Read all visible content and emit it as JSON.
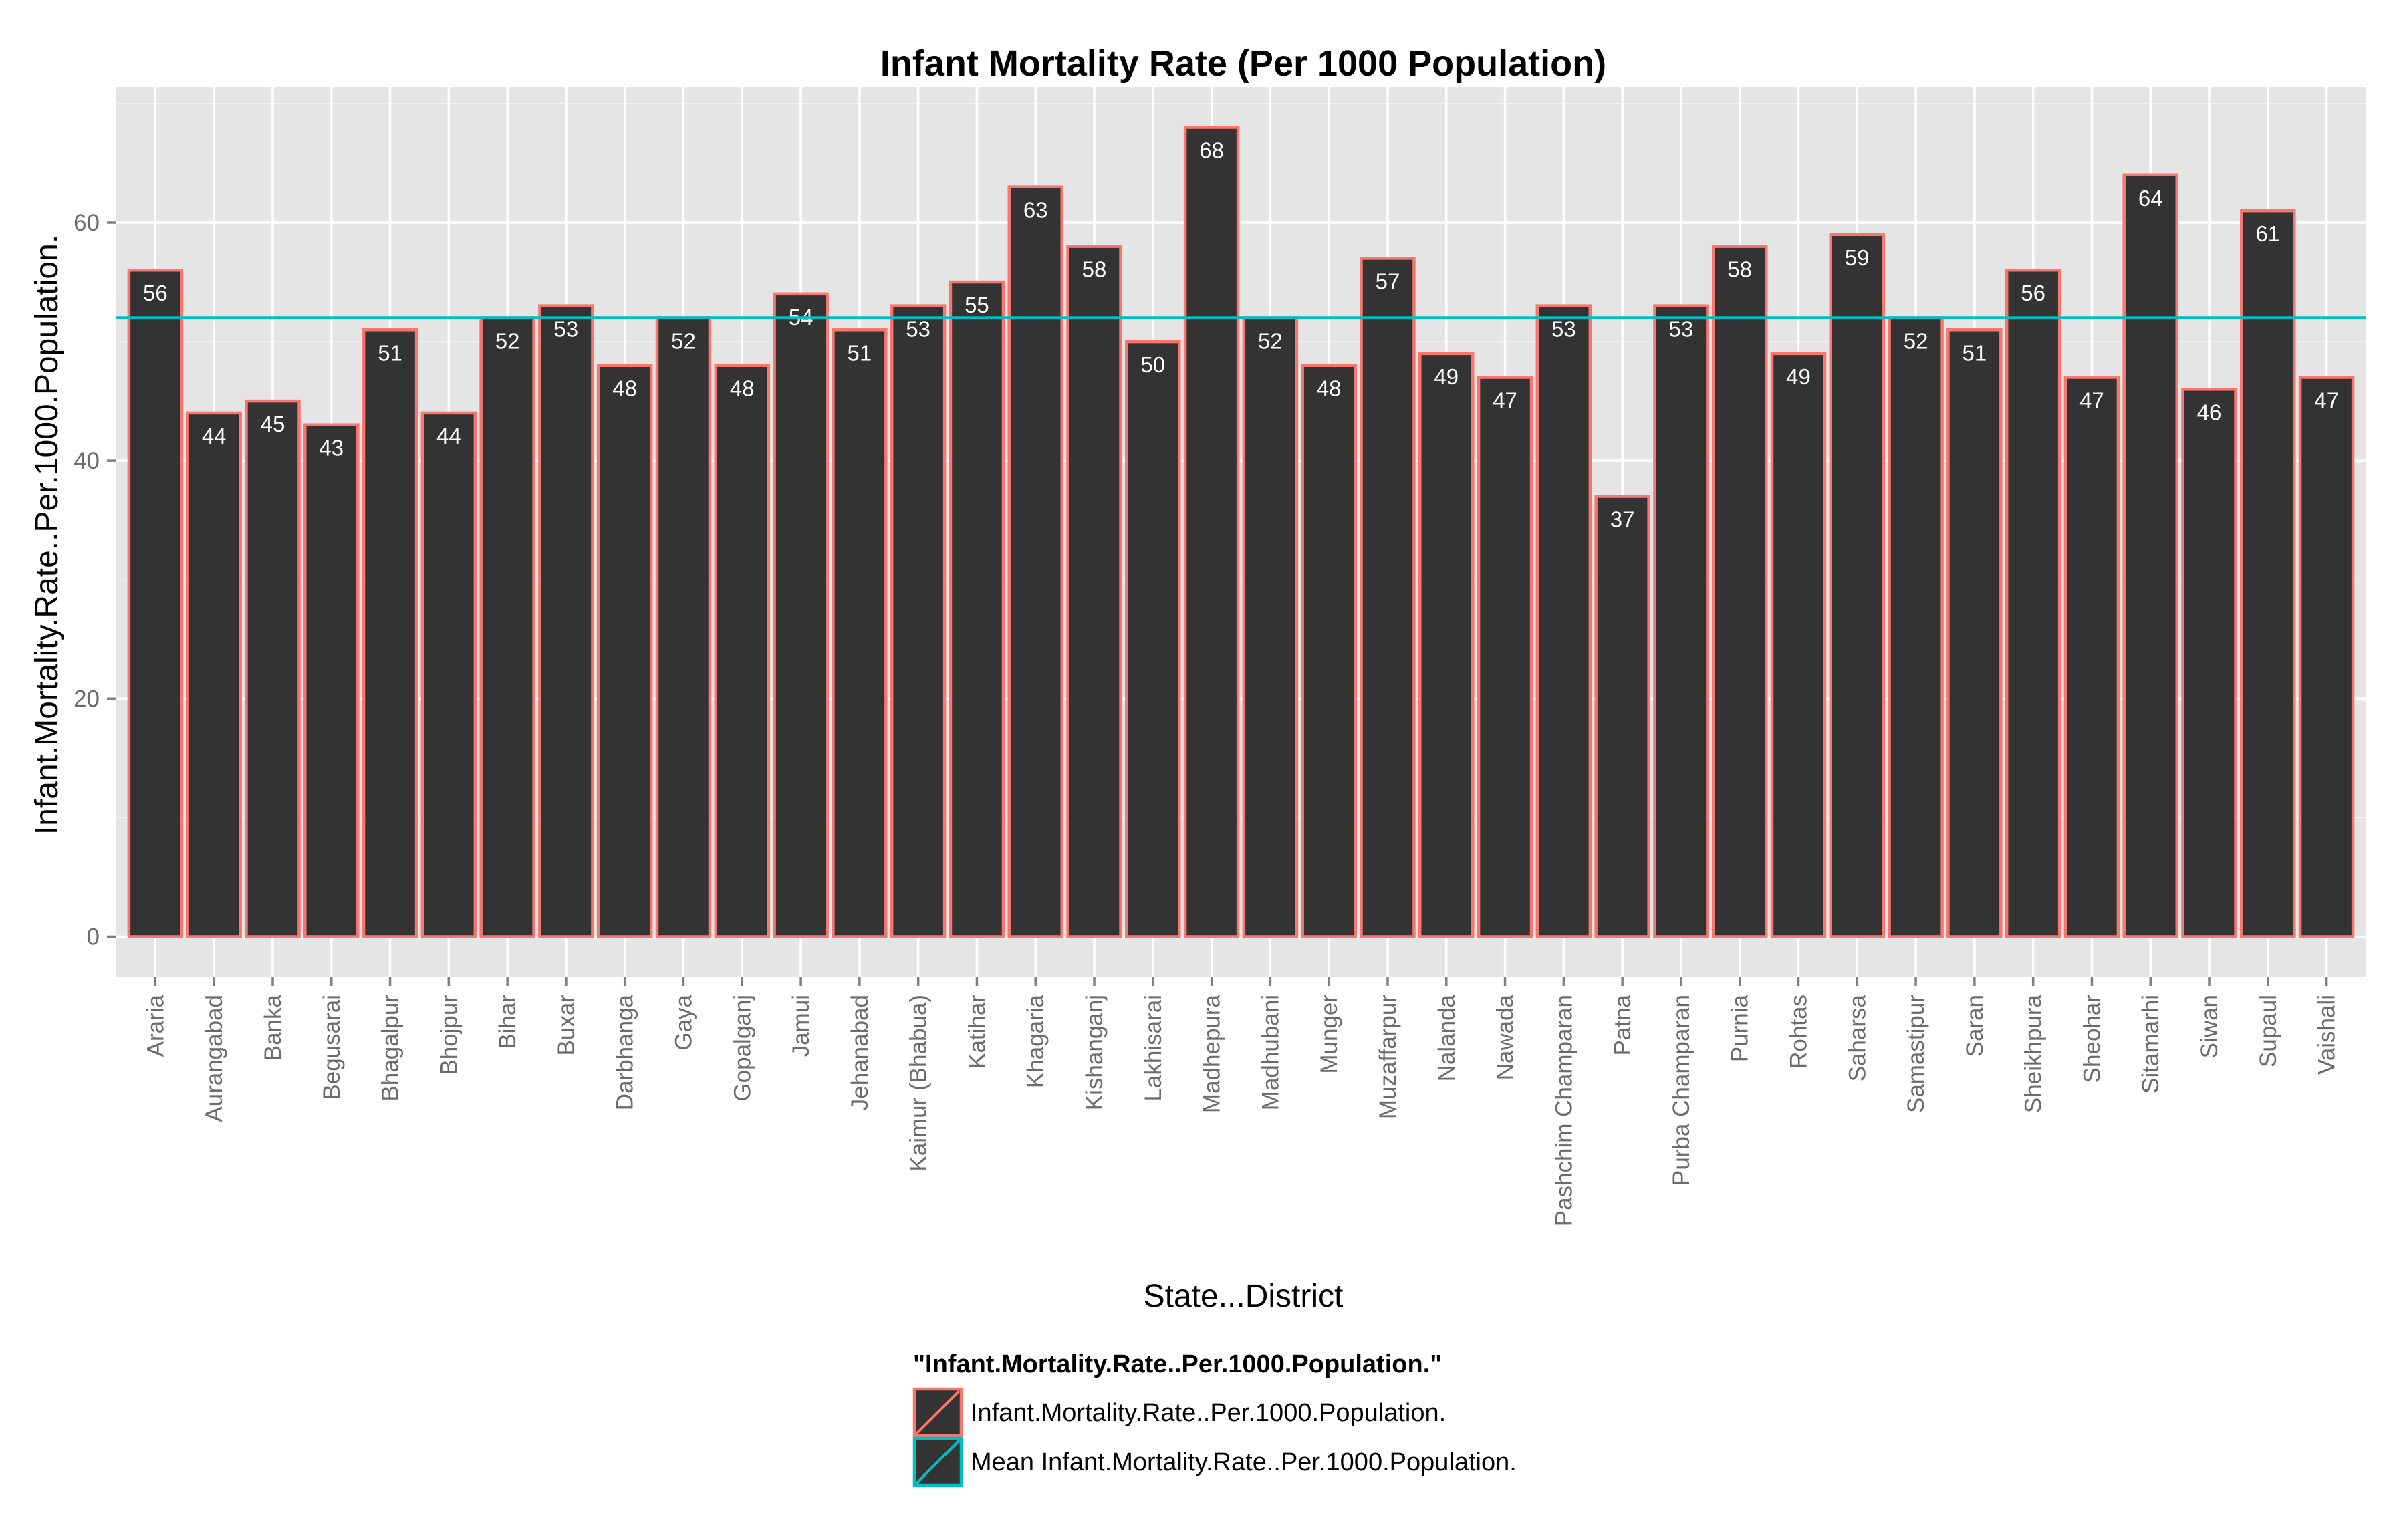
{
  "colors": {
    "panel": "#e5e5e5",
    "grid": "#ffffff",
    "bar_fill": "#333333",
    "bar_outline": "#f8766d",
    "mean_line": "#00bfc4",
    "tick_text": "#6b6b6b"
  },
  "chart_data": {
    "type": "bar",
    "title": "Infant Mortality Rate (Per 1000 Population)",
    "xlabel": "State...District",
    "ylabel": "Infant.Mortality.Rate..Per.1000.Population.",
    "ylim": [
      -3.4,
      71.4
    ],
    "yticks": [
      0,
      20,
      40,
      60
    ],
    "grid": true,
    "categories": [
      "Araria",
      "Aurangabad",
      "Banka",
      "Begusarai",
      "Bhagalpur",
      "Bhojpur",
      "Bihar",
      "Buxar",
      "Darbhanga",
      "Gaya",
      "Gopalganj",
      "Jamui",
      "Jehanabad",
      "Kaimur (Bhabua)",
      "Katihar",
      "Khagaria",
      "Kishanganj",
      "Lakhisarai",
      "Madhepura",
      "Madhubani",
      "Munger",
      "Muzaffarpur",
      "Nalanda",
      "Nawada",
      "Pashchim Champaran",
      "Patna",
      "Purba Champaran",
      "Purnia",
      "Rohtas",
      "Saharsa",
      "Samastipur",
      "Saran",
      "Sheikhpura",
      "Sheohar",
      "Sitamarhi",
      "Siwan",
      "Supaul",
      "Vaishali"
    ],
    "series": [
      {
        "name": "Infant.Mortality.Rate..Per.1000.Population.",
        "values": [
          56,
          44,
          45,
          43,
          51,
          44,
          52,
          53,
          48,
          52,
          48,
          54,
          51,
          53,
          55,
          63,
          58,
          50,
          68,
          52,
          48,
          57,
          49,
          47,
          53,
          37,
          53,
          58,
          49,
          59,
          52,
          51,
          56,
          47,
          64,
          46,
          61,
          47
        ]
      },
      {
        "name": "Mean Infant.Mortality.Rate..Per.1000.Population.",
        "value": 52
      }
    ],
    "data_labels": [
      "56",
      "44",
      "45",
      "43",
      "51",
      "44",
      "52",
      "53",
      "48",
      "52",
      "48",
      "54",
      "51",
      "53",
      "55",
      "63",
      "58",
      "50",
      "68",
      "52",
      "48",
      "57",
      "49",
      "47",
      "53",
      "37",
      "53",
      "58",
      "49",
      "59",
      "52",
      "51",
      "56",
      "47",
      "64",
      "46",
      "61",
      "47"
    ],
    "legend": {
      "title": "\"Infant.Mortality.Rate..Per.1000.Population.\"",
      "position": "bottom",
      "items": [
        "Infant.Mortality.Rate..Per.1000.Population.",
        "Mean Infant.Mortality.Rate..Per.1000.Population."
      ]
    }
  }
}
